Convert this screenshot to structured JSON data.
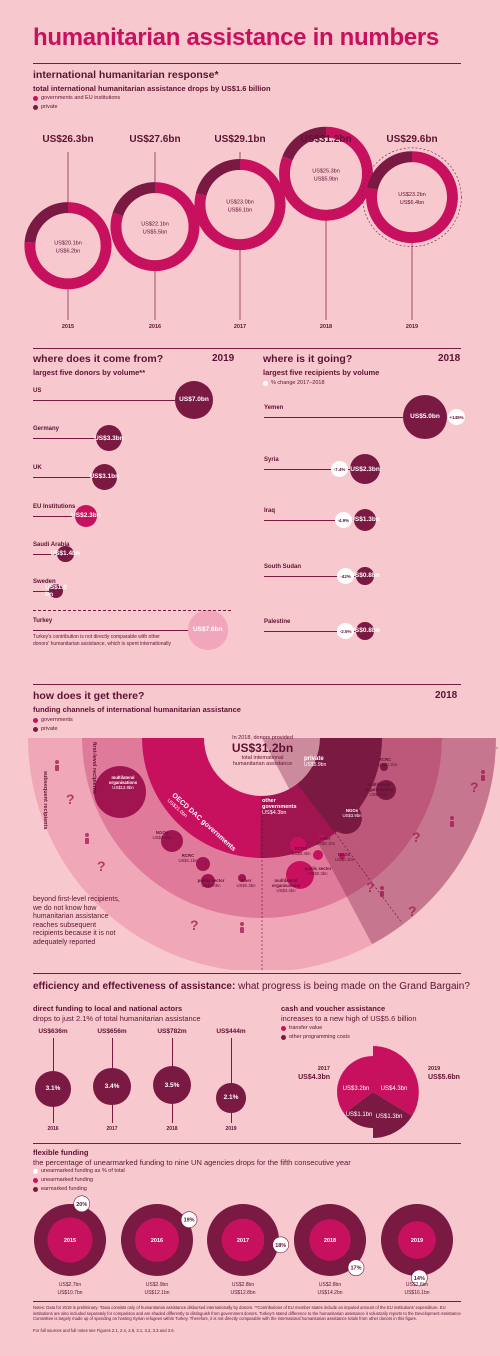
{
  "title": "humanitarian assistance in numbers",
  "colors": {
    "background": "#f7c8cd",
    "magenta": "#c8115e",
    "dark": "#7a1942",
    "text": "#5e1233",
    "light": "#f2a6bc"
  },
  "response": {
    "heading": "international humanitarian response*",
    "subtitle": "total international humanitarian assistance drops by US$1.6 billion",
    "legend_gov": "governments and EU institutions",
    "legend_priv": "private"
  },
  "chart_data": [
    {
      "type": "pie",
      "title": "international humanitarian response*",
      "categories": [
        "2015",
        "2016",
        "2017",
        "2018",
        "2019"
      ],
      "totals_label": [
        "US$26.3bn",
        "US$27.6bn",
        "US$29.1bn",
        "US$31.2bn",
        "US$29.6bn"
      ],
      "series": [
        {
          "name": "governments and EU institutions",
          "values": [
            20.1,
            22.1,
            23.0,
            25.3,
            23.2
          ],
          "labels": [
            "US$20.1bn",
            "US$22.1bn",
            "US$23.0bn",
            "US$25.3bn",
            "US$23.2bn"
          ]
        },
        {
          "name": "private",
          "values": [
            6.2,
            5.5,
            6.1,
            5.9,
            6.4
          ],
          "labels": [
            "US$6.2bn",
            "US$5.5bn",
            "US$6.1bn",
            "US$5.9bn",
            "US$6.4bn"
          ]
        }
      ]
    },
    {
      "type": "bar",
      "title": "largest five donors by volume**",
      "categories": [
        "US",
        "Germany",
        "UK",
        "EU Institutions",
        "Saudi Arabia",
        "Sweden",
        "Turkey"
      ],
      "values": [
        7.0,
        3.3,
        3.1,
        2.3,
        1.4,
        1.0,
        7.6
      ],
      "labels": [
        "US$7.0bn",
        "US$3.3bn",
        "US$3.1bn",
        "US$2.3bn",
        "US$1.4bn",
        "US$1.0 bn",
        "US$7.6bn"
      ]
    },
    {
      "type": "bar",
      "title": "largest five recipients by volume",
      "categories": [
        "Yemen",
        "Syria",
        "Iraq",
        "South Sudan",
        "Palestine"
      ],
      "values": [
        5.0,
        2.3,
        1.3,
        0.8,
        0.8
      ],
      "labels": [
        "US$5.0bn",
        "US$2.3bn",
        "US$1.3bn",
        "US$0.8bn",
        "US$0.8bn"
      ],
      "change": [
        "+145%",
        "-7.4%",
        "-4.9%",
        "-42%",
        "-2.5%"
      ]
    },
    {
      "type": "bar",
      "title": "direct funding to local and national actors",
      "categories": [
        "2016",
        "2017",
        "2018",
        "2019"
      ],
      "values": [
        3.1,
        3.4,
        3.5,
        2.1
      ],
      "amounts": [
        "US$636m",
        "US$656m",
        "US$782m",
        "US$444m"
      ],
      "labels": [
        "3.1%",
        "3.4%",
        "3.5%",
        "2.1%"
      ]
    },
    {
      "type": "pie",
      "title": "cash and voucher assistance",
      "categories": [
        "2017",
        "2019"
      ],
      "totals": [
        "US$4.3bn",
        "US$5.6bn"
      ],
      "series": [
        {
          "name": "transfer value",
          "labels": [
            "US$3.2bn",
            "US$4.3bn"
          ]
        },
        {
          "name": "other programming costs",
          "labels": [
            "US$1.1bn",
            "US$1.3bn"
          ]
        }
      ]
    },
    {
      "type": "pie",
      "title": "flexible funding",
      "categories": [
        "2015",
        "2016",
        "2017",
        "2018",
        "2019"
      ],
      "pct": [
        "20%",
        "19%",
        "18%",
        "17%",
        "14%"
      ],
      "pct_values": [
        20,
        19,
        18,
        17,
        14
      ],
      "unearmarked": [
        "US$2.7bn",
        "US$2.9bn",
        "US$2.8bn",
        "US$2.8bn",
        "US$2.6bn"
      ],
      "earmarked": [
        "US$10.7bn",
        "US$12.1bn",
        "US$12.8bn",
        "US$14.2bn",
        "US$16.1bn"
      ]
    }
  ],
  "donors": {
    "heading": "where does it come from?",
    "year": "2019",
    "subtitle": "largest five donors by volume**",
    "turkey_note": "Turkey's contribution is not directly comparable with other donors' humanitarian assistance, which is spent internationally"
  },
  "recipients": {
    "heading": "where is it going?",
    "year": "2018",
    "subtitle": "largest five recipients by volume",
    "legend": "% change 2017–2018"
  },
  "channels": {
    "heading": "how does it get there?",
    "year": "2018",
    "subtitle": "funding channels of international humanitarian assistance",
    "legend_gov": "governments",
    "legend_priv": "private",
    "center_small": "In 2018, donors provided",
    "center_big": "US$31.2bn",
    "center_sub": "total international humanitarian assistance",
    "ring_first": "first-level recipients",
    "ring_subsequent": "subsequent recipients",
    "oecd": "OECD DAC governments",
    "oecd_val": "US$21.0bn",
    "other_gov": "other governments",
    "other_gov_val": "US$4.3bn",
    "private": "private",
    "private_val": "US$5.9bn",
    "note": "beyond first-level recipients, we do not know how humanitarian assistance reaches subsequent recipients because it is not adequately reported",
    "nodes": [
      {
        "label": "multilateral organisations",
        "val": "US$13.9bn"
      },
      {
        "label": "NGOs",
        "val": "US$4.6bn"
      },
      {
        "label": "RCRC",
        "val": "US$1.1bn"
      },
      {
        "label": "public sector",
        "val": "US$1.0bn"
      },
      {
        "label": "other",
        "val": "US$0.3bn"
      },
      {
        "label": "RCRC",
        "val": "US$0.4bn"
      },
      {
        "label": "other",
        "val": "US$0.1bn"
      },
      {
        "label": "public sector",
        "val": "US$0.3bn"
      },
      {
        "label": "multilateral organisations",
        "val": "US$3.4bn"
      },
      {
        "label": "NGOs",
        "val": "US$0.1bn"
      },
      {
        "label": "NGOs",
        "val": "US$3.9bn"
      },
      {
        "label": "RCRC",
        "val": "US$0.1bn"
      },
      {
        "label": "multilateral organisations",
        "val": "US$0.6bn"
      }
    ]
  },
  "efficiency": {
    "heading_bold": "efficiency and effectiveness of assistance:",
    "heading_rest": " what progress is being made on the Grand Bargain?",
    "local_title": "direct funding to local and national actors",
    "local_sub": "drops to just 2.1% of total humanitarian assistance",
    "cash_title": "cash and voucher assistance",
    "cash_sub": "increases to a new high of US$5.6 billion",
    "cash_legend1": "transfer value",
    "cash_legend2": "other programming costs",
    "flex_title": "flexible funding",
    "flex_sub": "the percentage of unearmarked funding to nine UN agencies drops for the fifth consecutive year",
    "flex_legend1": "unearmarked funding as % of total",
    "flex_legend2": "unearmarked funding",
    "flex_legend3": "earmarked funding"
  },
  "notes": {
    "text": "Notes: Data for 2019 is preliminary. *Data consists only of humanitarian assistance disbursed internationally by donors. **Contributions of EU member states include an imputed amount of the EU institutions' expenditure. EU institutions are also included separately for comparison and are shaded differently to distinguish from government donors. Turkey's stated difference to the humanitarian assistance it voluntarily reports to the Development Assistance Committee is largely made up of spending on hosting Syrian refugees within Turkey. Therefore, it is not directly comparable with the international humanitarian assistance totals from other donors in this figure.",
    "sources": "For full sources and full notes see Figures 2.1, 2.4, 2.8, 3.1, 3.2, 3.3 and 3.6."
  }
}
